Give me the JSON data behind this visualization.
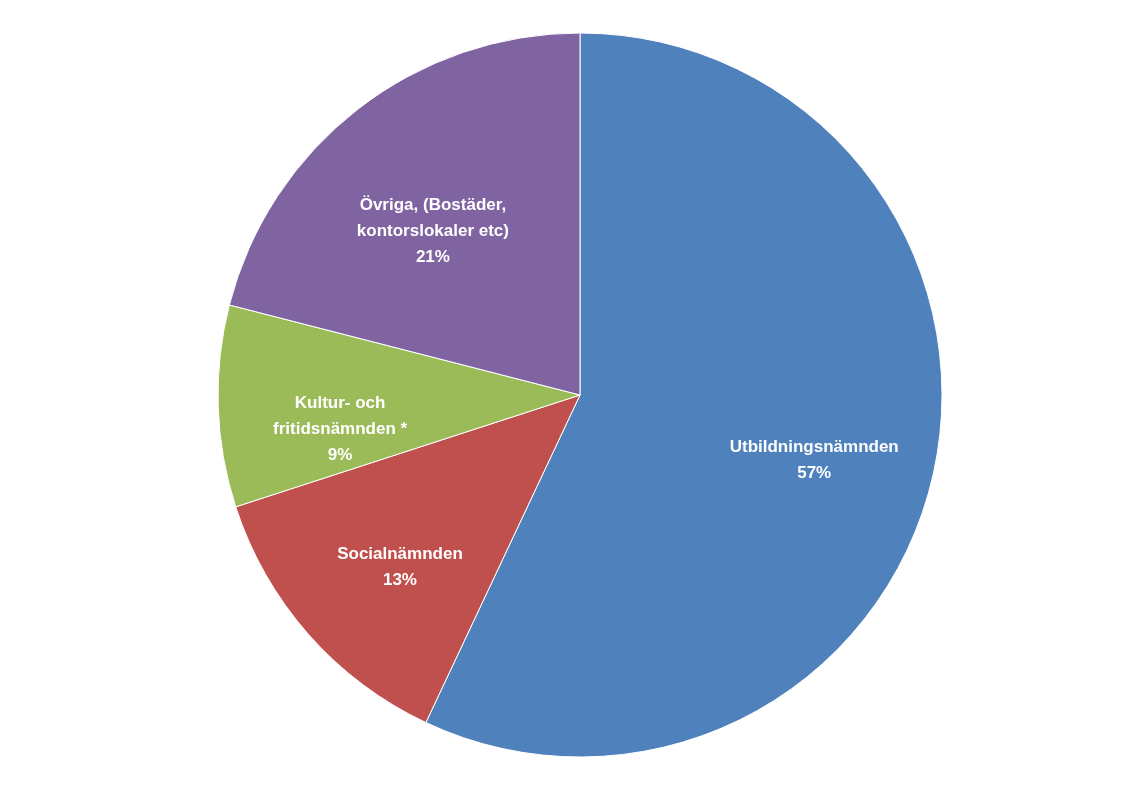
{
  "chart_data": {
    "type": "pie",
    "categories": [
      "Utbildningsnämnden",
      "Socialnämnden",
      "Kultur- och fritidsnämnden *",
      "Övriga, (Bostäder, kontorslokaler etc)"
    ],
    "values": [
      57,
      13,
      9,
      21
    ],
    "colors": [
      "#4f81bd",
      "#c0504d",
      "#9bbb59",
      "#8064a2"
    ],
    "value_labels": [
      "57%",
      "13%",
      "9%",
      "21%"
    ],
    "legend": false
  }
}
